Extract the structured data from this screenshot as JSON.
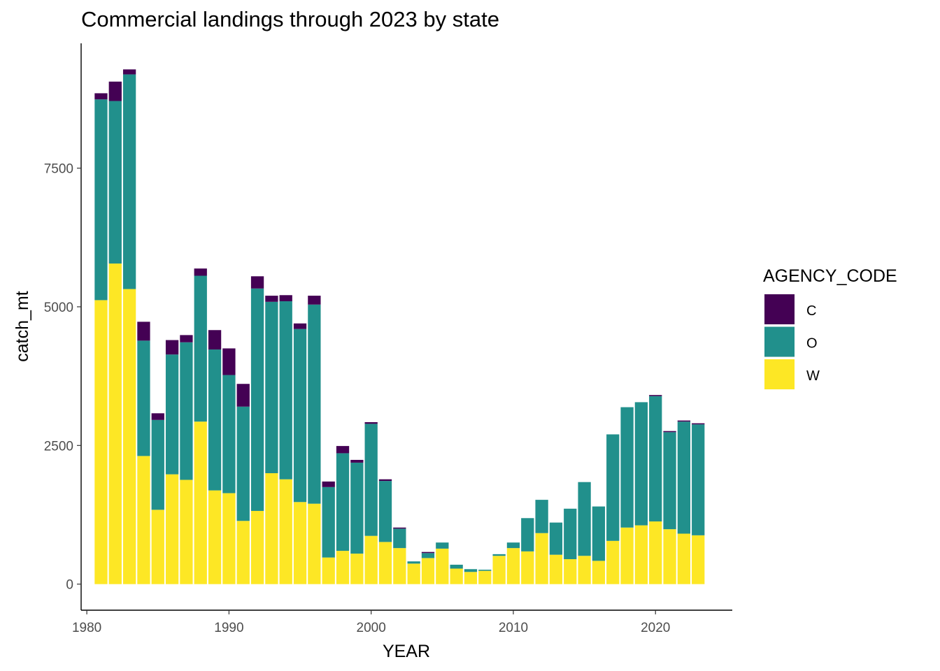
{
  "chart_data": {
    "type": "bar",
    "stacked": true,
    "title": "Commercial landings through 2023 by state",
    "xlabel": "YEAR",
    "ylabel": "catch_mt",
    "x": [
      1981,
      1982,
      1983,
      1984,
      1985,
      1986,
      1987,
      1988,
      1989,
      1990,
      1991,
      1992,
      1993,
      1994,
      1995,
      1996,
      1997,
      1998,
      1999,
      2000,
      2001,
      2002,
      2003,
      2004,
      2005,
      2006,
      2007,
      2008,
      2009,
      2010,
      2011,
      2012,
      2013,
      2014,
      2015,
      2016,
      2017,
      2018,
      2019,
      2020,
      2021,
      2022,
      2023
    ],
    "xlim": [
      1979.6,
      2025.4
    ],
    "ylim": [
      -470,
      9750
    ],
    "x_ticks": [
      1980,
      1990,
      2000,
      2010,
      2020
    ],
    "y_ticks": [
      0,
      2500,
      5000,
      7500
    ],
    "x_tick_labels": [
      "1980",
      "1990",
      "2000",
      "2010",
      "2020"
    ],
    "y_tick_labels": [
      "0",
      "2500",
      "5000",
      "7500"
    ],
    "grid": false,
    "legend": {
      "title": "AGENCY_CODE",
      "position": "right",
      "entries": [
        {
          "key": "C",
          "label": "C",
          "color": "#440154"
        },
        {
          "key": "O",
          "label": "O",
          "color": "#21908C"
        },
        {
          "key": "W",
          "label": "W",
          "color": "#FDE725"
        }
      ]
    },
    "stack_order": [
      "W",
      "O",
      "C"
    ],
    "series": [
      {
        "name": "W",
        "color": "#FDE725",
        "values": [
          5120,
          5780,
          5320,
          2310,
          1340,
          1980,
          1880,
          2930,
          1690,
          1640,
          1140,
          1320,
          2000,
          1890,
          1480,
          1450,
          480,
          600,
          550,
          870,
          760,
          650,
          370,
          470,
          640,
          280,
          220,
          240,
          510,
          650,
          590,
          920,
          530,
          450,
          510,
          420,
          780,
          1020,
          1060,
          1130,
          990,
          910,
          880
        ]
      },
      {
        "name": "O",
        "color": "#21908C",
        "values": [
          3620,
          2930,
          3870,
          2080,
          1620,
          2160,
          2480,
          2630,
          2540,
          2130,
          2060,
          4010,
          3090,
          3210,
          3120,
          3590,
          1270,
          1760,
          1640,
          2020,
          1100,
          350,
          40,
          90,
          110,
          70,
          50,
          20,
          30,
          100,
          600,
          600,
          580,
          910,
          1330,
          980,
          1920,
          2170,
          2220,
          2260,
          1750,
          2020,
          2000
        ]
      },
      {
        "name": "C",
        "color": "#440154",
        "values": [
          110,
          350,
          90,
          340,
          120,
          260,
          130,
          130,
          350,
          480,
          410,
          220,
          110,
          110,
          100,
          160,
          100,
          130,
          50,
          30,
          30,
          20,
          0,
          20,
          0,
          0,
          0,
          0,
          0,
          0,
          0,
          0,
          0,
          0,
          0,
          0,
          0,
          0,
          0,
          20,
          20,
          20,
          20
        ]
      }
    ]
  }
}
